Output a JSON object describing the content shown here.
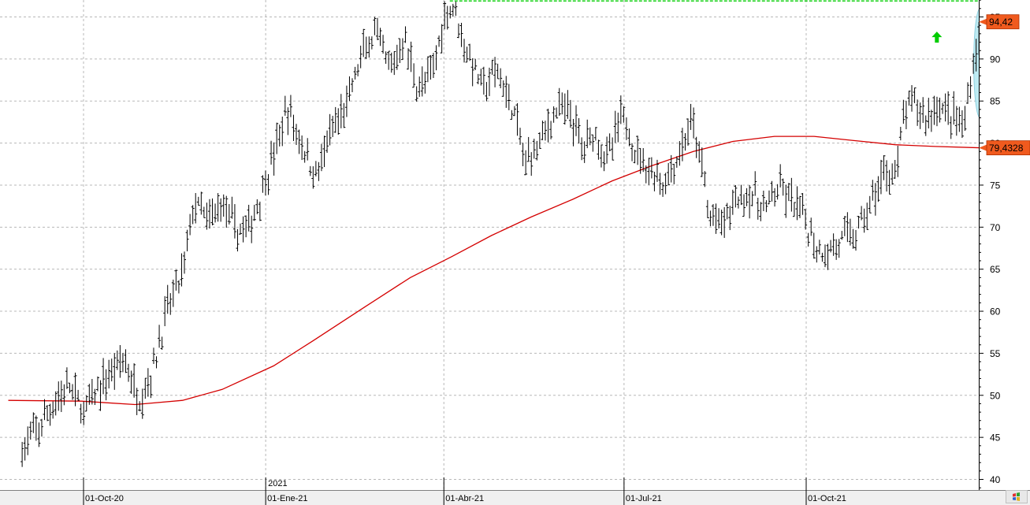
{
  "chart_data": {
    "type": "line",
    "title": "",
    "xlabel": "",
    "ylabel": "",
    "ylim": [
      39,
      97
    ],
    "y_ticks": [
      40,
      45,
      50,
      55,
      60,
      65,
      70,
      75,
      80,
      85,
      90,
      95
    ],
    "y_tick_labels": [
      "40",
      "45",
      "50",
      "55",
      "60",
      "65",
      "70",
      "75",
      "80",
      "85",
      "90",
      "95"
    ],
    "x_date_labels": [
      "01-Oct-20",
      "01-Ene-21",
      "01-Abr-21",
      "01-Jul-21",
      "01-Oct-21"
    ],
    "x_year_label": "2021",
    "grid": true,
    "price_bars": {
      "description": "daily OHLC bars (black)",
      "anchors": [
        [
          "2020-08-31",
          43.5
        ],
        [
          "2020-09-10",
          46.5
        ],
        [
          "2020-09-17",
          49.5
        ],
        [
          "2020-09-24",
          51.0
        ],
        [
          "2020-10-01",
          48.0
        ],
        [
          "2020-10-14",
          52.5
        ],
        [
          "2020-10-21",
          54.5
        ],
        [
          "2020-10-29",
          49.5
        ],
        [
          "2020-11-05",
          53.0
        ],
        [
          "2020-11-12",
          60.0
        ],
        [
          "2020-11-20",
          64.5
        ],
        [
          "2020-11-26",
          73.0
        ],
        [
          "2020-12-03",
          70.5
        ],
        [
          "2020-12-10",
          73.0
        ],
        [
          "2020-12-17",
          69.5
        ],
        [
          "2020-12-24",
          70.0
        ],
        [
          "2021-01-05",
          78.5
        ],
        [
          "2021-01-12",
          84.0
        ],
        [
          "2021-01-19",
          80.0
        ],
        [
          "2021-01-26",
          76.0
        ],
        [
          "2021-02-03",
          81.0
        ],
        [
          "2021-02-11",
          84.5
        ],
        [
          "2021-02-18",
          90.0
        ],
        [
          "2021-02-25",
          93.0
        ],
        [
          "2021-03-05",
          88.5
        ],
        [
          "2021-03-12",
          92.5
        ],
        [
          "2021-03-19",
          86.5
        ],
        [
          "2021-03-26",
          88.0
        ],
        [
          "2021-04-01",
          95.0
        ],
        [
          "2021-04-06",
          96.5
        ],
        [
          "2021-04-13",
          90.5
        ],
        [
          "2021-04-21",
          86.5
        ],
        [
          "2021-04-28",
          88.5
        ],
        [
          "2021-05-06",
          84.0
        ],
        [
          "2021-05-12",
          77.5
        ],
        [
          "2021-05-21",
          81.0
        ],
        [
          "2021-05-28",
          84.0
        ],
        [
          "2021-06-04",
          83.5
        ],
        [
          "2021-06-10",
          79.5
        ],
        [
          "2021-06-16",
          81.5
        ],
        [
          "2021-06-23",
          78.0
        ],
        [
          "2021-06-30",
          83.5
        ],
        [
          "2021-07-07",
          79.0
        ],
        [
          "2021-07-14",
          77.0
        ],
        [
          "2021-07-21",
          75.0
        ],
        [
          "2021-07-29",
          78.5
        ],
        [
          "2021-08-04",
          82.5
        ],
        [
          "2021-08-10",
          76.5
        ],
        [
          "2021-08-13",
          71.0
        ],
        [
          "2021-08-20",
          70.5
        ],
        [
          "2021-08-27",
          73.5
        ],
        [
          "2021-09-03",
          74.0
        ],
        [
          "2021-09-10",
          72.0
        ],
        [
          "2021-09-17",
          74.5
        ],
        [
          "2021-09-24",
          73.0
        ],
        [
          "2021-10-01",
          70.5
        ],
        [
          "2021-10-06",
          67.5
        ],
        [
          "2021-10-12",
          67.0
        ],
        [
          "2021-10-19",
          68.5
        ],
        [
          "2021-10-27",
          69.5
        ],
        [
          "2021-11-04",
          73.5
        ],
        [
          "2021-11-11",
          77.0
        ],
        [
          "2021-11-16",
          76.5
        ],
        [
          "2021-11-19",
          83.0
        ],
        [
          "2021-11-24",
          85.0
        ],
        [
          "2021-12-01",
          83.0
        ],
        [
          "2021-12-06",
          84.5
        ],
        [
          "2021-12-13",
          83.5
        ],
        [
          "2021-12-20",
          82.0
        ],
        [
          "2021-12-24",
          89.5
        ],
        [
          "2021-12-29",
          93.5
        ]
      ]
    },
    "moving_average": {
      "description": "moving average (red line)",
      "points": [
        [
          "2020-08-24",
          49.4
        ],
        [
          "2020-09-30",
          49.3
        ],
        [
          "2020-10-27",
          48.9
        ],
        [
          "2020-11-20",
          49.4
        ],
        [
          "2020-12-10",
          50.7
        ],
        [
          "2021-01-05",
          53.5
        ],
        [
          "2021-01-25",
          56.5
        ],
        [
          "2021-02-20",
          60.5
        ],
        [
          "2021-03-15",
          64.0
        ],
        [
          "2021-04-05",
          66.5
        ],
        [
          "2021-04-25",
          69.0
        ],
        [
          "2021-05-15",
          71.2
        ],
        [
          "2021-06-05",
          73.3
        ],
        [
          "2021-06-25",
          75.5
        ],
        [
          "2021-07-15",
          77.3
        ],
        [
          "2021-08-05",
          79.0
        ],
        [
          "2021-08-25",
          80.2
        ],
        [
          "2021-09-15",
          80.8
        ],
        [
          "2021-10-05",
          80.8
        ],
        [
          "2021-10-25",
          80.3
        ],
        [
          "2021-11-15",
          79.8
        ],
        [
          "2021-12-05",
          79.6
        ],
        [
          "2021-12-29",
          79.43
        ]
      ]
    },
    "resistance_line": {
      "description": "horizontal dashed green line from the April high",
      "value": 96.9,
      "from": "2021-04-04",
      "to": "2021-12-31"
    },
    "annotations": {
      "highlight": "light blue ellipse around the final rally bars",
      "arrow": "green up arrow",
      "arrow_date": "2021-12-06",
      "arrow_value": 92.6
    },
    "last_price_label": "94,42",
    "last_price_value": 94.42,
    "ma_value_label": "79,4328",
    "ma_value": 79.4328,
    "colors": {
      "bars": "#000000",
      "moving_average": "#d40000",
      "resistance": "#00cc00",
      "arrow": "#00cc00",
      "highlight": "#a8e4ef",
      "price_badge": "#f05a1e",
      "axis_background": "#ffffff",
      "date_bar_background": "#f0f0f0"
    }
  },
  "corner_icon": "windows-flag-icon"
}
